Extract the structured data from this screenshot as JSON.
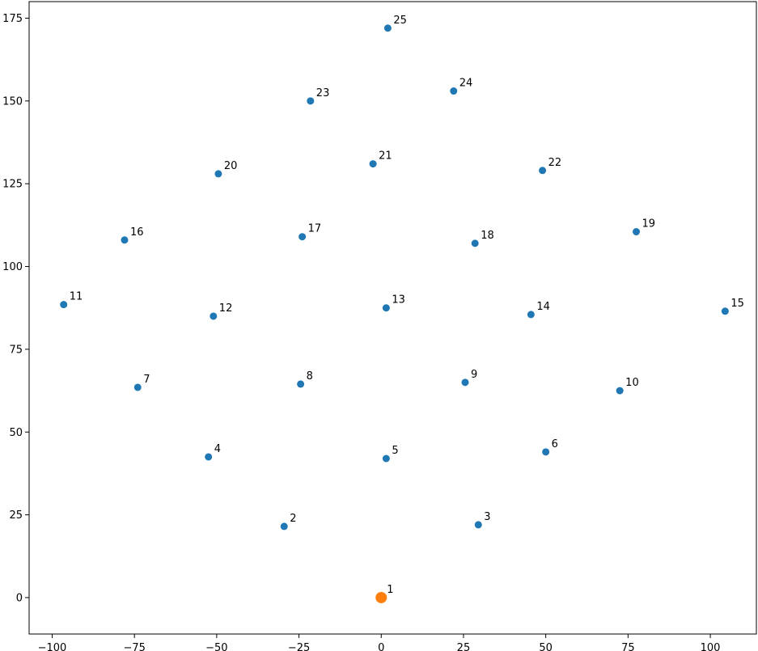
{
  "chart_data": {
    "type": "scatter",
    "title": "",
    "xlabel": "",
    "ylabel": "",
    "xlim": [
      -107,
      114
    ],
    "ylim": [
      -11,
      180
    ],
    "grid": false,
    "legend": "none",
    "x_ticks": [
      -100,
      -75,
      -50,
      -25,
      0,
      25,
      50,
      75,
      100
    ],
    "y_ticks": [
      0,
      25,
      50,
      75,
      100,
      125,
      150,
      175
    ],
    "x_tick_labels": [
      "−100",
      "−75",
      "−50",
      "−25",
      "0",
      "25",
      "50",
      "75",
      "100"
    ],
    "y_tick_labels": [
      "0",
      "25",
      "50",
      "75",
      "100",
      "125",
      "150",
      "175"
    ],
    "colors": {
      "points": "#1f77b4",
      "highlight": "#ff7f0e"
    },
    "highlight_point": {
      "label": "1",
      "x": 0,
      "y": 0
    },
    "points": [
      {
        "label": "2",
        "x": -29.5,
        "y": 21.5
      },
      {
        "label": "3",
        "x": 29.5,
        "y": 22
      },
      {
        "label": "4",
        "x": -52.5,
        "y": 42.5
      },
      {
        "label": "5",
        "x": 1.5,
        "y": 42
      },
      {
        "label": "6",
        "x": 50,
        "y": 44
      },
      {
        "label": "7",
        "x": -74,
        "y": 63.5
      },
      {
        "label": "8",
        "x": -24.5,
        "y": 64.5
      },
      {
        "label": "9",
        "x": 25.5,
        "y": 65
      },
      {
        "label": "10",
        "x": 72.5,
        "y": 62.5
      },
      {
        "label": "11",
        "x": -96.5,
        "y": 88.5
      },
      {
        "label": "12",
        "x": -51,
        "y": 85
      },
      {
        "label": "13",
        "x": 1.5,
        "y": 87.5
      },
      {
        "label": "14",
        "x": 45.5,
        "y": 85.5
      },
      {
        "label": "15",
        "x": 104.5,
        "y": 86.5
      },
      {
        "label": "16",
        "x": -78,
        "y": 108
      },
      {
        "label": "17",
        "x": -24,
        "y": 109
      },
      {
        "label": "18",
        "x": 28.5,
        "y": 107
      },
      {
        "label": "19",
        "x": 77.5,
        "y": 110.5
      },
      {
        "label": "20",
        "x": -49.5,
        "y": 128
      },
      {
        "label": "21",
        "x": -2.5,
        "y": 131
      },
      {
        "label": "22",
        "x": 49,
        "y": 129
      },
      {
        "label": "23",
        "x": -21.5,
        "y": 150
      },
      {
        "label": "24",
        "x": 22,
        "y": 153
      },
      {
        "label": "25",
        "x": 2,
        "y": 172
      }
    ]
  }
}
